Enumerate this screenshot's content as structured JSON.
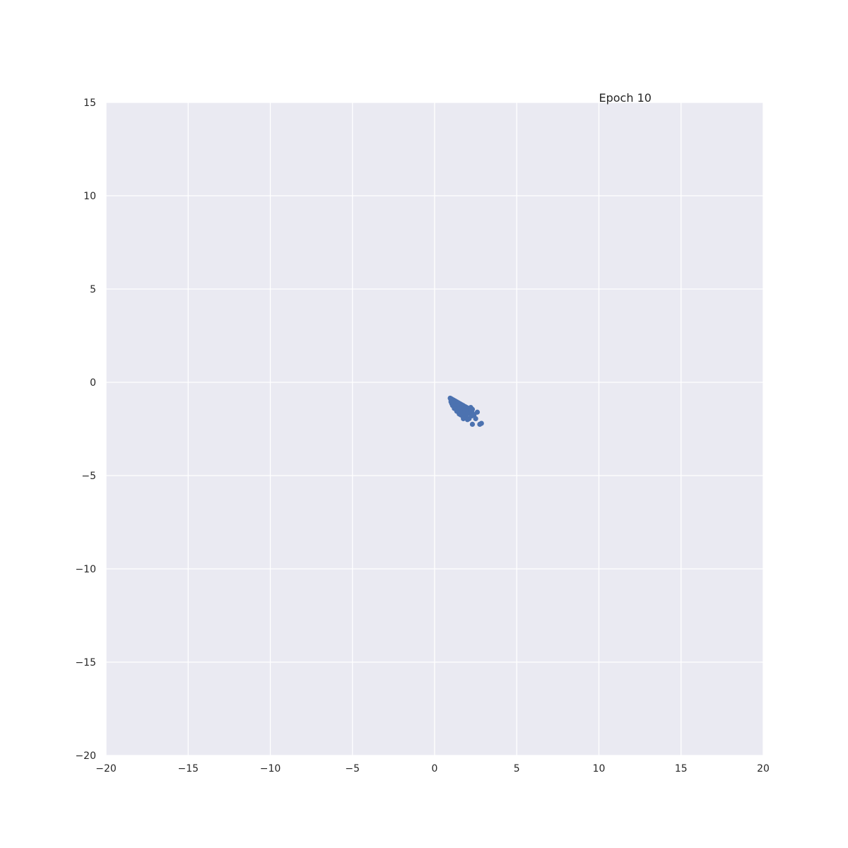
{
  "chart_data": {
    "type": "scatter",
    "title": "",
    "xlabel": "",
    "ylabel": "",
    "xlim": [
      -20,
      20
    ],
    "ylim": [
      -20,
      15
    ],
    "xticks": [
      "−20",
      "−15",
      "−10",
      "−5",
      "0",
      "5",
      "10",
      "15",
      "20"
    ],
    "yticks": [
      "15",
      "10",
      "5",
      "0",
      "−5",
      "−10",
      "−15",
      "−20"
    ],
    "xtick_values": [
      -20,
      -15,
      -10,
      -5,
      0,
      5,
      10,
      15,
      20
    ],
    "ytick_values": [
      15,
      10,
      5,
      0,
      -5,
      -10,
      -15,
      -20
    ],
    "grid": true,
    "annotation": {
      "text": "Epoch 10",
      "x": 10,
      "y": 15
    },
    "series": [
      {
        "color": "#4c72b0",
        "points": [
          [
            0.95,
            -0.85
          ],
          [
            1.05,
            -0.9
          ],
          [
            1.15,
            -0.95
          ],
          [
            1.25,
            -1.0
          ],
          [
            1.35,
            -1.05
          ],
          [
            1.45,
            -1.1
          ],
          [
            1.55,
            -1.15
          ],
          [
            1.65,
            -1.2
          ],
          [
            1.75,
            -1.25
          ],
          [
            1.85,
            -1.3
          ],
          [
            1.95,
            -1.35
          ],
          [
            2.05,
            -1.4
          ],
          [
            1.0,
            -0.95
          ],
          [
            1.1,
            -1.0
          ],
          [
            1.2,
            -1.05
          ],
          [
            1.3,
            -1.1
          ],
          [
            1.4,
            -1.15
          ],
          [
            1.5,
            -1.2
          ],
          [
            1.6,
            -1.25
          ],
          [
            1.7,
            -1.3
          ],
          [
            1.8,
            -1.35
          ],
          [
            1.9,
            -1.4
          ],
          [
            2.0,
            -1.45
          ],
          [
            2.1,
            -1.5
          ],
          [
            1.0,
            -1.05
          ],
          [
            1.1,
            -1.1
          ],
          [
            1.2,
            -1.15
          ],
          [
            1.3,
            -1.2
          ],
          [
            1.4,
            -1.25
          ],
          [
            1.5,
            -1.3
          ],
          [
            1.6,
            -1.35
          ],
          [
            1.7,
            -1.4
          ],
          [
            1.8,
            -1.45
          ],
          [
            1.9,
            -1.5
          ],
          [
            2.0,
            -1.55
          ],
          [
            2.1,
            -1.6
          ],
          [
            1.05,
            -1.15
          ],
          [
            1.15,
            -1.2
          ],
          [
            1.25,
            -1.25
          ],
          [
            1.35,
            -1.3
          ],
          [
            1.45,
            -1.35
          ],
          [
            1.55,
            -1.4
          ],
          [
            1.65,
            -1.45
          ],
          [
            1.75,
            -1.5
          ],
          [
            1.85,
            -1.55
          ],
          [
            1.95,
            -1.6
          ],
          [
            2.05,
            -1.65
          ],
          [
            1.1,
            -1.25
          ],
          [
            1.2,
            -1.3
          ],
          [
            1.3,
            -1.35
          ],
          [
            1.4,
            -1.4
          ],
          [
            1.5,
            -1.45
          ],
          [
            1.6,
            -1.5
          ],
          [
            1.7,
            -1.55
          ],
          [
            1.8,
            -1.6
          ],
          [
            1.9,
            -1.65
          ],
          [
            2.0,
            -1.7
          ],
          [
            1.2,
            -1.4
          ],
          [
            1.3,
            -1.45
          ],
          [
            1.4,
            -1.5
          ],
          [
            1.5,
            -1.55
          ],
          [
            1.6,
            -1.6
          ],
          [
            1.7,
            -1.65
          ],
          [
            1.8,
            -1.7
          ],
          [
            1.9,
            -1.75
          ],
          [
            1.35,
            -1.55
          ],
          [
            1.45,
            -1.6
          ],
          [
            1.55,
            -1.65
          ],
          [
            1.65,
            -1.7
          ],
          [
            1.75,
            -1.75
          ],
          [
            1.85,
            -1.8
          ],
          [
            1.5,
            -1.7
          ],
          [
            1.6,
            -1.75
          ],
          [
            1.7,
            -1.8
          ],
          [
            1.8,
            -1.85
          ],
          [
            1.9,
            -1.9
          ],
          [
            2.2,
            -1.35
          ],
          [
            2.3,
            -1.45
          ],
          [
            2.2,
            -1.55
          ],
          [
            2.3,
            -1.65
          ],
          [
            2.25,
            -1.8
          ],
          [
            2.4,
            -1.75
          ],
          [
            2.6,
            -1.6
          ],
          [
            2.5,
            -1.95
          ],
          [
            2.1,
            -1.95
          ],
          [
            2.0,
            -2.0
          ],
          [
            1.75,
            -1.95
          ],
          [
            2.3,
            -2.25
          ],
          [
            2.75,
            -2.25
          ],
          [
            2.85,
            -2.2
          ]
        ]
      }
    ]
  }
}
